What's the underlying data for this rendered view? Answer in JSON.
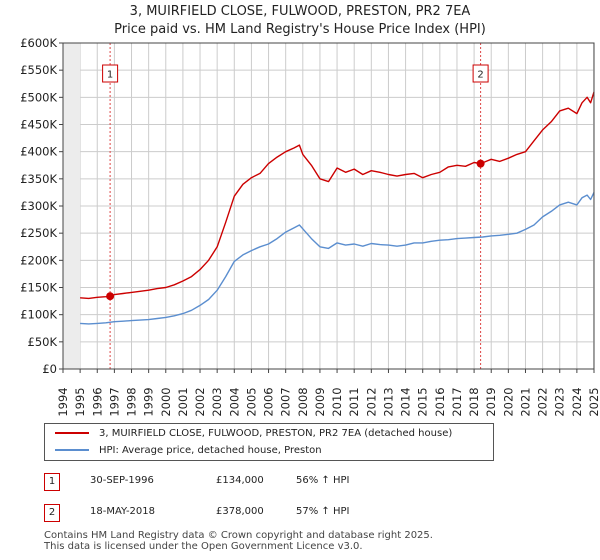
{
  "title_line1": "3, MUIRFIELD CLOSE, FULWOOD, PRESTON, PR2 7EA",
  "title_line2": "Price paid vs. HM Land Registry's House Price Index (HPI)",
  "chart_data": {
    "type": "line",
    "title": "3, MUIRFIELD CLOSE, FULWOOD, PRESTON, PR2 7EA — Price paid vs. HM Land Registry's House Price Index (HPI)",
    "xlabel": "",
    "ylabel": "",
    "xlim": [
      1994,
      2025
    ],
    "ylim": [
      0,
      600000
    ],
    "x_ticks": [
      "1994",
      "1995",
      "1996",
      "1997",
      "1998",
      "1999",
      "2000",
      "2001",
      "2002",
      "2003",
      "2004",
      "2005",
      "2006",
      "2007",
      "2008",
      "2009",
      "2010",
      "2011",
      "2012",
      "2013",
      "2014",
      "2015",
      "2016",
      "2017",
      "2018",
      "2019",
      "2020",
      "2021",
      "2022",
      "2023",
      "2024",
      "2025"
    ],
    "y_ticks": [
      {
        "value": 0,
        "label": "£0"
      },
      {
        "value": 50000,
        "label": "£50K"
      },
      {
        "value": 100000,
        "label": "£100K"
      },
      {
        "value": 150000,
        "label": "£150K"
      },
      {
        "value": 200000,
        "label": "£200K"
      },
      {
        "value": 250000,
        "label": "£250K"
      },
      {
        "value": 300000,
        "label": "£300K"
      },
      {
        "value": 350000,
        "label": "£350K"
      },
      {
        "value": 400000,
        "label": "£400K"
      },
      {
        "value": 450000,
        "label": "£450K"
      },
      {
        "value": 500000,
        "label": "£500K"
      },
      {
        "value": 550000,
        "label": "£550K"
      },
      {
        "value": 600000,
        "label": "£600K"
      }
    ],
    "grid": true,
    "series": [
      {
        "name": "3, MUIRFIELD CLOSE, FULWOOD, PRESTON, PR2 7EA (detached house)",
        "color": "#cc0000",
        "x": [
          1995.0,
          1995.5,
          1996.0,
          1996.5,
          1996.75,
          1997.0,
          1997.5,
          1998.0,
          1998.5,
          1999.0,
          1999.5,
          2000.0,
          2000.5,
          2001.0,
          2001.5,
          2002.0,
          2002.5,
          2003.0,
          2003.5,
          2004.0,
          2004.5,
          2005.0,
          2005.5,
          2006.0,
          2006.5,
          2007.0,
          2007.5,
          2007.8,
          2008.0,
          2008.5,
          2009.0,
          2009.5,
          2010.0,
          2010.5,
          2011.0,
          2011.5,
          2012.0,
          2012.5,
          2013.0,
          2013.5,
          2014.0,
          2014.5,
          2015.0,
          2015.5,
          2016.0,
          2016.5,
          2017.0,
          2017.5,
          2018.0,
          2018.38,
          2018.7,
          2019.0,
          2019.5,
          2020.0,
          2020.5,
          2021.0,
          2021.5,
          2022.0,
          2022.5,
          2023.0,
          2023.5,
          2024.0,
          2024.3,
          2024.6,
          2024.8,
          2025.0
        ],
        "y": [
          131000,
          130000,
          132000,
          133000,
          134000,
          137000,
          139000,
          141000,
          143000,
          145000,
          148000,
          150000,
          155000,
          162000,
          170000,
          183000,
          200000,
          225000,
          270000,
          318000,
          340000,
          352000,
          360000,
          378000,
          390000,
          400000,
          407000,
          412000,
          395000,
          375000,
          350000,
          345000,
          370000,
          362000,
          368000,
          358000,
          365000,
          362000,
          358000,
          355000,
          358000,
          360000,
          352000,
          358000,
          362000,
          372000,
          375000,
          373000,
          380000,
          378000,
          382000,
          386000,
          382000,
          388000,
          395000,
          400000,
          420000,
          440000,
          455000,
          475000,
          480000,
          470000,
          490000,
          500000,
          490000,
          510000
        ]
      },
      {
        "name": "HPI: Average price, detached house, Preston",
        "color": "#5b8ecf",
        "x": [
          1995.0,
          1995.5,
          1996.0,
          1996.5,
          1997.0,
          1997.5,
          1998.0,
          1998.5,
          1999.0,
          1999.5,
          2000.0,
          2000.5,
          2001.0,
          2001.5,
          2002.0,
          2002.5,
          2003.0,
          2003.5,
          2004.0,
          2004.5,
          2005.0,
          2005.5,
          2006.0,
          2006.5,
          2007.0,
          2007.5,
          2007.8,
          2008.0,
          2008.5,
          2009.0,
          2009.5,
          2010.0,
          2010.5,
          2011.0,
          2011.5,
          2012.0,
          2012.5,
          2013.0,
          2013.5,
          2014.0,
          2014.5,
          2015.0,
          2015.5,
          2016.0,
          2016.5,
          2017.0,
          2017.5,
          2018.0,
          2018.5,
          2019.0,
          2019.5,
          2020.0,
          2020.5,
          2021.0,
          2021.5,
          2022.0,
          2022.5,
          2023.0,
          2023.5,
          2024.0,
          2024.3,
          2024.6,
          2024.8,
          2025.0
        ],
        "y": [
          84000,
          83000,
          84000,
          85000,
          87000,
          88000,
          89000,
          90000,
          91000,
          93000,
          95000,
          98000,
          102000,
          108000,
          117000,
          128000,
          145000,
          170000,
          198000,
          210000,
          218000,
          225000,
          230000,
          240000,
          252000,
          260000,
          265000,
          258000,
          240000,
          225000,
          222000,
          232000,
          228000,
          230000,
          226000,
          231000,
          229000,
          228000,
          226000,
          228000,
          232000,
          232000,
          235000,
          237000,
          238000,
          240000,
          241000,
          242000,
          243000,
          245000,
          246000,
          248000,
          250000,
          257000,
          265000,
          280000,
          290000,
          302000,
          307000,
          302000,
          315000,
          320000,
          312000,
          325000
        ]
      }
    ],
    "sales": [
      {
        "marker": "1",
        "x": 1996.75,
        "price": 134000
      },
      {
        "marker": "2",
        "x": 2018.38,
        "price": 378000
      }
    ],
    "chart_text_color": "#222222",
    "grid_color": "#cccccc",
    "vline_color": "#dd4444"
  },
  "legend": {
    "property_label": "3, MUIRFIELD CLOSE, FULWOOD, PRESTON, PR2 7EA (detached house)",
    "hpi_label": "HPI: Average price, detached house, Preston"
  },
  "sales_table": [
    {
      "badge": "1",
      "date": "30-SEP-1996",
      "price": "£134,000",
      "hpi": "56% ↑ HPI"
    },
    {
      "badge": "2",
      "date": "18-MAY-2018",
      "price": "£378,000",
      "hpi": "57% ↑ HPI"
    }
  ],
  "footer": {
    "line1": "Contains HM Land Registry data © Crown copyright and database right 2025.",
    "line2": "This data is licensed under the Open Government Licence v3.0."
  }
}
